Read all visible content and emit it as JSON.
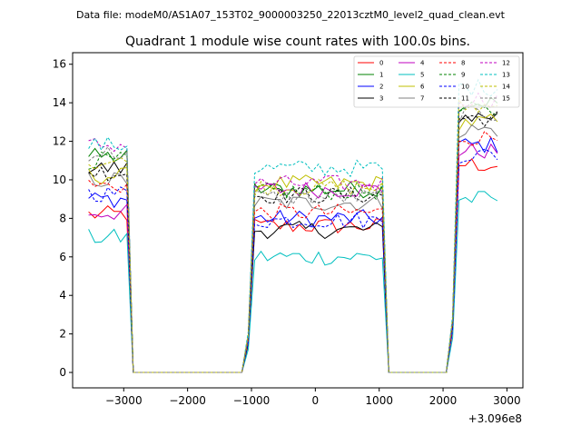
{
  "header": {
    "data_file": "Data file: modeM0/AS1A07_153T02_9000003250_22013cztM0_level2_quad_clean.evt"
  },
  "chart_data": {
    "type": "line",
    "title": "Quadrant 1 module wise count rates with 100.0s bins.",
    "xlabel": "",
    "ylabel": "",
    "x_offset_label": "+3.096e8",
    "xlim": [
      -3800,
      3250
    ],
    "ylim": [
      -0.8,
      16.6
    ],
    "x_ticks": [
      -3000,
      -2000,
      -1000,
      0,
      1000,
      2000,
      3000
    ],
    "x_tick_labels": [
      "−3000",
      "−2000",
      "−1000",
      "0",
      "1000",
      "2000",
      "3000"
    ],
    "y_ticks": [
      0,
      2,
      4,
      6,
      8,
      10,
      12,
      14,
      16
    ],
    "y_tick_labels": [
      "0",
      "2",
      "4",
      "6",
      "8",
      "10",
      "12",
      "14",
      "16"
    ],
    "legend_position": "top-right",
    "segments": [
      {
        "start": -3550,
        "end": -2950
      },
      {
        "start": -950,
        "end": 1050
      },
      {
        "start": 2250,
        "end": 2850
      }
    ],
    "series": [
      {
        "name": "0",
        "color": "#ff0000",
        "dash": false,
        "levels": [
          8.2,
          7.6,
          10.8
        ]
      },
      {
        "name": "1",
        "color": "#008000",
        "dash": false,
        "levels": [
          11.2,
          9.5,
          14.0
        ]
      },
      {
        "name": "2",
        "color": "#0000ff",
        "dash": false,
        "levels": [
          9.0,
          8.0,
          11.8
        ]
      },
      {
        "name": "3",
        "color": "#000000",
        "dash": false,
        "levels": [
          10.6,
          7.4,
          13.3
        ]
      },
      {
        "name": "4",
        "color": "#bf00bf",
        "dash": false,
        "levels": [
          8.3,
          9.5,
          11.5
        ]
      },
      {
        "name": "5",
        "color": "#00bfbf",
        "dash": false,
        "levels": [
          7.0,
          6.0,
          9.0
        ]
      },
      {
        "name": "6",
        "color": "#bfbf00",
        "dash": false,
        "levels": [
          10.2,
          9.8,
          13.0
        ]
      },
      {
        "name": "7",
        "color": "#808080",
        "dash": false,
        "levels": [
          10.0,
          8.8,
          12.6
        ]
      },
      {
        "name": "8",
        "color": "#ff0000",
        "dash": true,
        "levels": [
          9.7,
          8.3,
          12.2
        ]
      },
      {
        "name": "9",
        "color": "#008000",
        "dash": true,
        "levels": [
          11.0,
          9.4,
          13.6
        ]
      },
      {
        "name": "10",
        "color": "#0000ff",
        "dash": true,
        "levels": [
          9.3,
          7.9,
          11.3
        ]
      },
      {
        "name": "11",
        "color": "#000000",
        "dash": true,
        "levels": [
          10.4,
          9.2,
          13.2
        ]
      },
      {
        "name": "12",
        "color": "#bf00bf",
        "dash": true,
        "levels": [
          11.8,
          9.8,
          14.2
        ]
      },
      {
        "name": "13",
        "color": "#00bfbf",
        "dash": true,
        "levels": [
          11.8,
          10.6,
          14.8
        ]
      },
      {
        "name": "14",
        "color": "#bfbf00",
        "dash": true,
        "levels": [
          10.9,
          9.6,
          13.8
        ]
      },
      {
        "name": "15",
        "color": "#808080",
        "dash": true,
        "levels": [
          11.4,
          9.1,
          13.4
        ]
      }
    ]
  }
}
